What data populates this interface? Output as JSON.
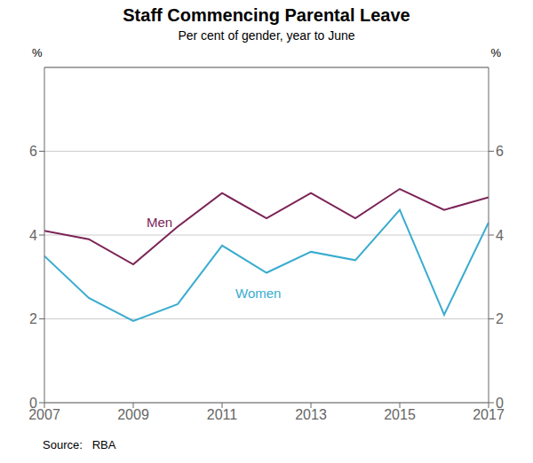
{
  "chart_data": {
    "type": "line",
    "title": "Staff Commencing Parental Leave",
    "subtitle": "Per cent of gender, year to June",
    "source": "Source:   RBA",
    "x": [
      2007,
      2008,
      2009,
      2010,
      2011,
      2012,
      2013,
      2014,
      2015,
      2016,
      2017
    ],
    "series": [
      {
        "name": "Men",
        "color": "#7B2457",
        "values": [
          4.1,
          3.9,
          3.3,
          4.2,
          5.0,
          4.4,
          5.0,
          4.4,
          5.1,
          4.6,
          4.9
        ]
      },
      {
        "name": "Women",
        "color": "#3AACCF",
        "values": [
          3.5,
          2.5,
          1.95,
          2.35,
          3.75,
          3.1,
          3.6,
          3.4,
          4.6,
          2.1,
          4.3
        ]
      }
    ],
    "annotations": [
      {
        "text": "Men",
        "x": 2009.2,
        "y": 4.3,
        "color": "#7B2457"
      },
      {
        "text": "Women",
        "x": 2011.2,
        "y": 2.6,
        "color": "#3AACCF"
      }
    ],
    "y_label": "%",
    "y2_label": "%",
    "xlim": [
      2007,
      2017
    ],
    "xticks": [
      2007,
      2009,
      2011,
      2013,
      2015,
      2017
    ],
    "ylim": [
      0,
      8
    ],
    "yticks": [
      0,
      2,
      4,
      6
    ],
    "y2lim": [
      0,
      8
    ],
    "y2ticks": [
      0,
      2,
      4,
      6
    ],
    "grid": true
  }
}
